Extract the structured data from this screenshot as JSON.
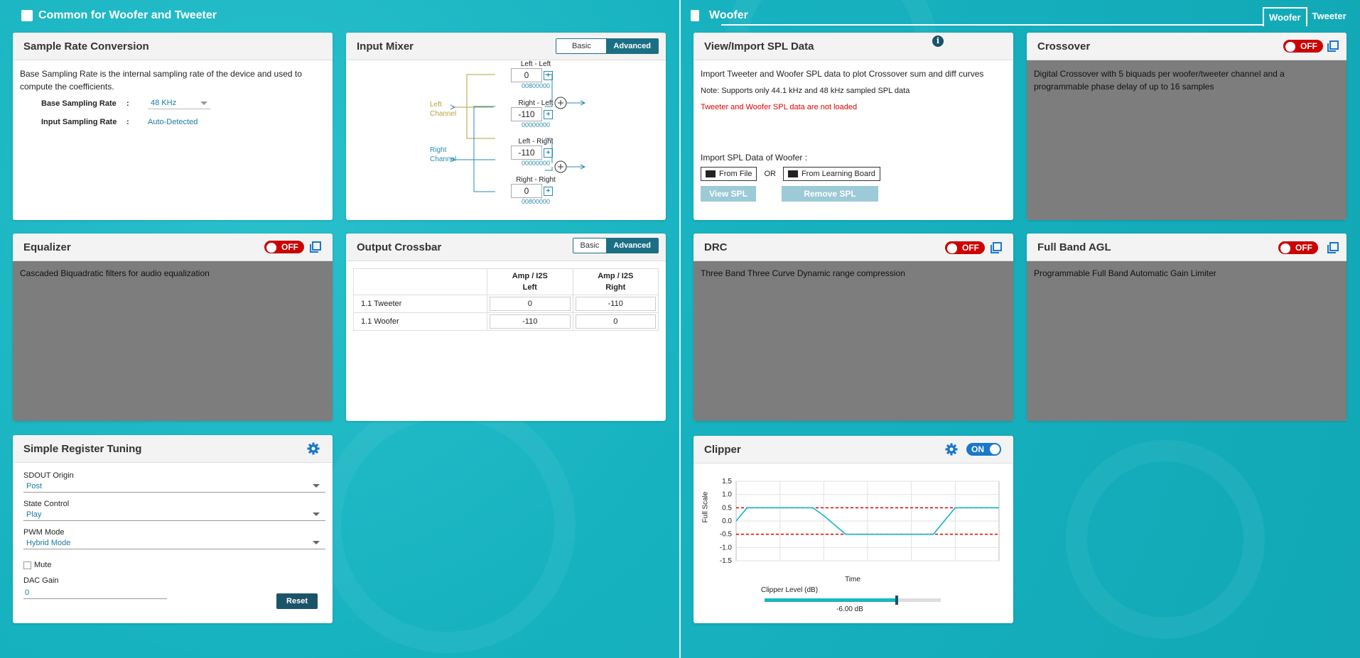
{
  "left_section": {
    "title": "Common for Woofer and Tweeter"
  },
  "right_section": {
    "title": "Woofer",
    "tabs": [
      "Woofer",
      "Tweeter"
    ]
  },
  "src": {
    "title": "Sample Rate Conversion",
    "desc": "Base Sampling Rate is the internal sampling rate of the device and used to compute the coefficients.",
    "base_label": "Base Sampling Rate",
    "base_value": "48 KHz",
    "input_label": "Input Sampling Rate",
    "input_value": "Auto-Detected",
    "colon": ":"
  },
  "mixer": {
    "title": "Input Mixer",
    "mode_basic": "Basic",
    "mode_advanced": "Advanced",
    "left_channel": [
      "Left",
      "Channel"
    ],
    "right_channel": [
      "Right",
      "Channel"
    ],
    "gains": [
      {
        "label": "Left - Left",
        "value": "0",
        "hex": "00800000"
      },
      {
        "label": "Right - Left",
        "value": "-110",
        "hex": "00000000"
      },
      {
        "label": "Left - Right",
        "value": "-110",
        "hex": "00000000"
      },
      {
        "label": "Right - Right",
        "value": "0",
        "hex": "00800000"
      }
    ]
  },
  "spl": {
    "title": "View/Import SPL Data",
    "desc": "Import Tweeter and Woofer SPL data to plot Crossover sum and diff curves",
    "note": "Note: Supports only 44.1 kHz and 48 kHz sampled SPL data",
    "warning": "Tweeter and Woofer SPL data are not loaded",
    "import_label": "Import SPL Data of Woofer :",
    "from_file": "From File",
    "or": "OR",
    "from_board": "From Learning Board",
    "view": "View SPL",
    "remove": "Remove SPL",
    "warning_color": "#e00000"
  },
  "crossover": {
    "title": "Crossover",
    "toggle": "OFF",
    "desc": "Digital Crossover with 5 biquads per woofer/tweeter channel and a programmable phase delay of up to 16 samples"
  },
  "equalizer": {
    "title": "Equalizer",
    "toggle": "OFF",
    "desc": "Cascaded Biquadratic filters for audio equalization"
  },
  "crossbar": {
    "title": "Output Crossbar",
    "mode_basic": "Basic",
    "mode_advanced": "Advanced",
    "col1": [
      "Amp / I2S",
      "Left"
    ],
    "col2": [
      "Amp / I2S",
      "Right"
    ],
    "rows": [
      {
        "name": "1.1 Tweeter",
        "left": "0",
        "right": "-110"
      },
      {
        "name": "1.1 Woofer",
        "left": "-110",
        "right": "0"
      }
    ]
  },
  "drc": {
    "title": "DRC",
    "toggle": "OFF",
    "desc": "Three Band Three Curve Dynamic range compression"
  },
  "agl": {
    "title": "Full Band AGL",
    "toggle": "OFF",
    "desc": "Programmable Full Band Automatic Gain Limiter"
  },
  "tuning": {
    "title": "Simple Register Tuning",
    "sdout_label": "SDOUT Origin",
    "sdout_value": "Post",
    "state_label": "State Control",
    "state_value": "Play",
    "pwm_label": "PWM Mode",
    "pwm_value": "Hybrid Mode",
    "mute_label": "Mute",
    "dac_label": "DAC Gain",
    "dac_value": "0",
    "reset": "Reset"
  },
  "clipper": {
    "title": "Clipper",
    "toggle": "ON",
    "ylabel": "Full Scale",
    "xlabel": "Time",
    "yticks": [
      "1.5",
      "1.0",
      "0.5",
      "0.0",
      "-0.5",
      "-1.0",
      "-1.5"
    ],
    "level_label": "Clipper Level (dB)",
    "level_value": "-6.00 dB",
    "slider_fraction": 0.75
  },
  "chart_data": {
    "type": "line",
    "title": "",
    "xlabel": "Time",
    "ylabel": "Full Scale",
    "ylim": [
      -1.5,
      1.5
    ],
    "threshold": 0.5,
    "series": [
      {
        "x": [
          0,
          0.5,
          1,
          3.5,
          4,
          5,
          6,
          6.5,
          9,
          10,
          11.5,
          12
        ],
        "y": [
          0.0,
          0.5,
          0.5,
          0.5,
          0.2,
          -0.5,
          -0.5,
          -0.5,
          -0.5,
          0.5,
          0.5,
          0.5
        ]
      }
    ],
    "grid": true
  }
}
